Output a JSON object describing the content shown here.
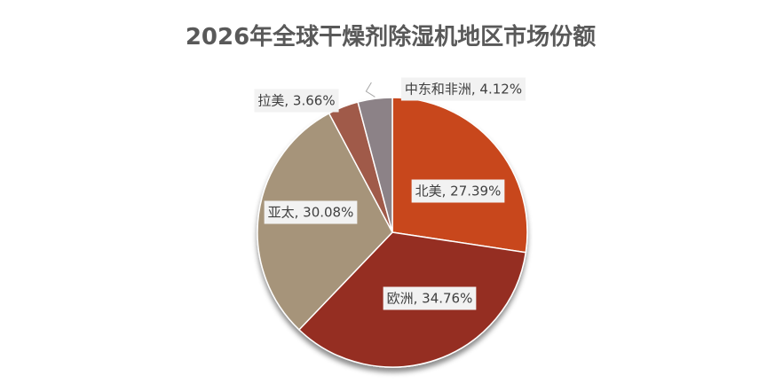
{
  "chart_data": {
    "type": "pie",
    "title": "2026年全球干燥剂除湿机地区市场份额",
    "values": [
      27.39,
      34.76,
      30.08,
      3.66,
      4.12
    ],
    "value_labels": [
      "北美, 27.39%",
      "欧洲, 34.76%",
      "亚太, 30.08%",
      "拉美, 3.66%",
      "中东和非洲, 4.12%"
    ],
    "colors": [
      "#c8461c",
      "#952f22",
      "#a6947a",
      "#a05a4a",
      "#8c8287"
    ]
  }
}
